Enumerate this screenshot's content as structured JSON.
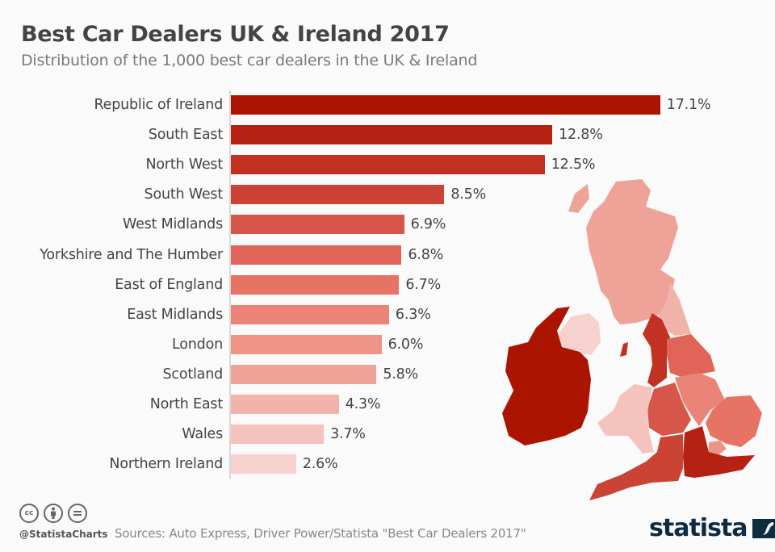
{
  "header": {
    "title": "Best Car Dealers UK & Ireland 2017",
    "subtitle": "Distribution of the 1,000 best car dealers in the UK & Ireland"
  },
  "footer": {
    "license_icons": [
      "cc-icon",
      "attribution-icon",
      "no-derivatives-icon"
    ],
    "cc_text": "cc",
    "handle": "@StatistaCharts",
    "source": "Sources: Auto Express, Driver Power/Statista \"Best Car Dealers 2017\"",
    "brand": "statista"
  },
  "chart_data": {
    "type": "bar",
    "orientation": "horizontal",
    "title": "Best Car Dealers UK & Ireland 2017",
    "subtitle": "Distribution of the 1,000 best car dealers in the UK & Ireland",
    "xlabel": "",
    "ylabel": "",
    "unit": "%",
    "grid": false,
    "legend": "none",
    "categories": [
      "Republic of Ireland",
      "South East",
      "North West",
      "South West",
      "West Midlands",
      "Yorkshire and The Humber",
      "East of England",
      "East Midlands",
      "London",
      "Scotland",
      "North East",
      "Wales",
      "Northern Ireland"
    ],
    "values": [
      17.1,
      12.8,
      12.5,
      8.5,
      6.9,
      6.8,
      6.7,
      6.3,
      6.0,
      5.8,
      4.3,
      3.7,
      2.6
    ],
    "value_labels": [
      "17.1%",
      "12.8%",
      "12.5%",
      "8.5%",
      "6.9%",
      "6.8%",
      "6.7%",
      "6.3%",
      "6.0%",
      "5.8%",
      "4.3%",
      "3.7%",
      "2.6%"
    ],
    "colors": [
      "#ab1500",
      "#b52214",
      "#c13222",
      "#ca4334",
      "#d6564a",
      "#e06558",
      "#e77365",
      "#eb8476",
      "#ed9486",
      "#efa298",
      "#f2b4aa",
      "#f5c3bd",
      "#f7d1cd"
    ],
    "annotations": "Choropleth map of UK & Ireland regions shaded by share"
  }
}
